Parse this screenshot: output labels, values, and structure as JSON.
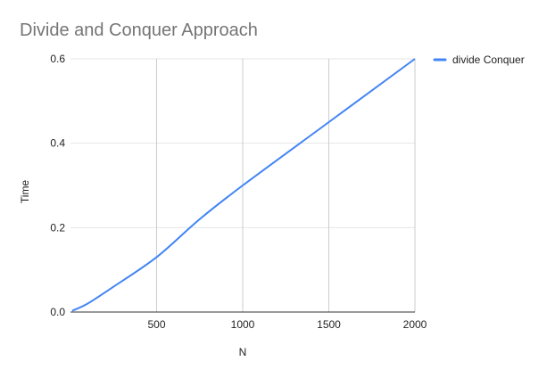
{
  "chart_data": {
    "type": "line",
    "title": "Divide and Conquer Approach",
    "xlabel": "N",
    "ylabel": "Time",
    "xlim": [
      0,
      2000
    ],
    "ylim": [
      0,
      0.6
    ],
    "x_ticks": [
      500,
      1000,
      1500,
      2000
    ],
    "x_tick_labels": [
      "500",
      "1000",
      "1500",
      "2000"
    ],
    "y_ticks": [
      0,
      0.2,
      0.4,
      0.6
    ],
    "y_tick_labels": [
      "0.0",
      "0.2",
      "0.4",
      "0.6"
    ],
    "grid": true,
    "legend_position": "right",
    "series": [
      {
        "name": "divide Conquer",
        "color": "#4285f4",
        "x": [
          10,
          100,
          250,
          500,
          750,
          1000,
          1500,
          2000
        ],
        "y": [
          0.003,
          0.02,
          0.06,
          0.13,
          0.22,
          0.3,
          0.45,
          0.6
        ]
      }
    ]
  }
}
